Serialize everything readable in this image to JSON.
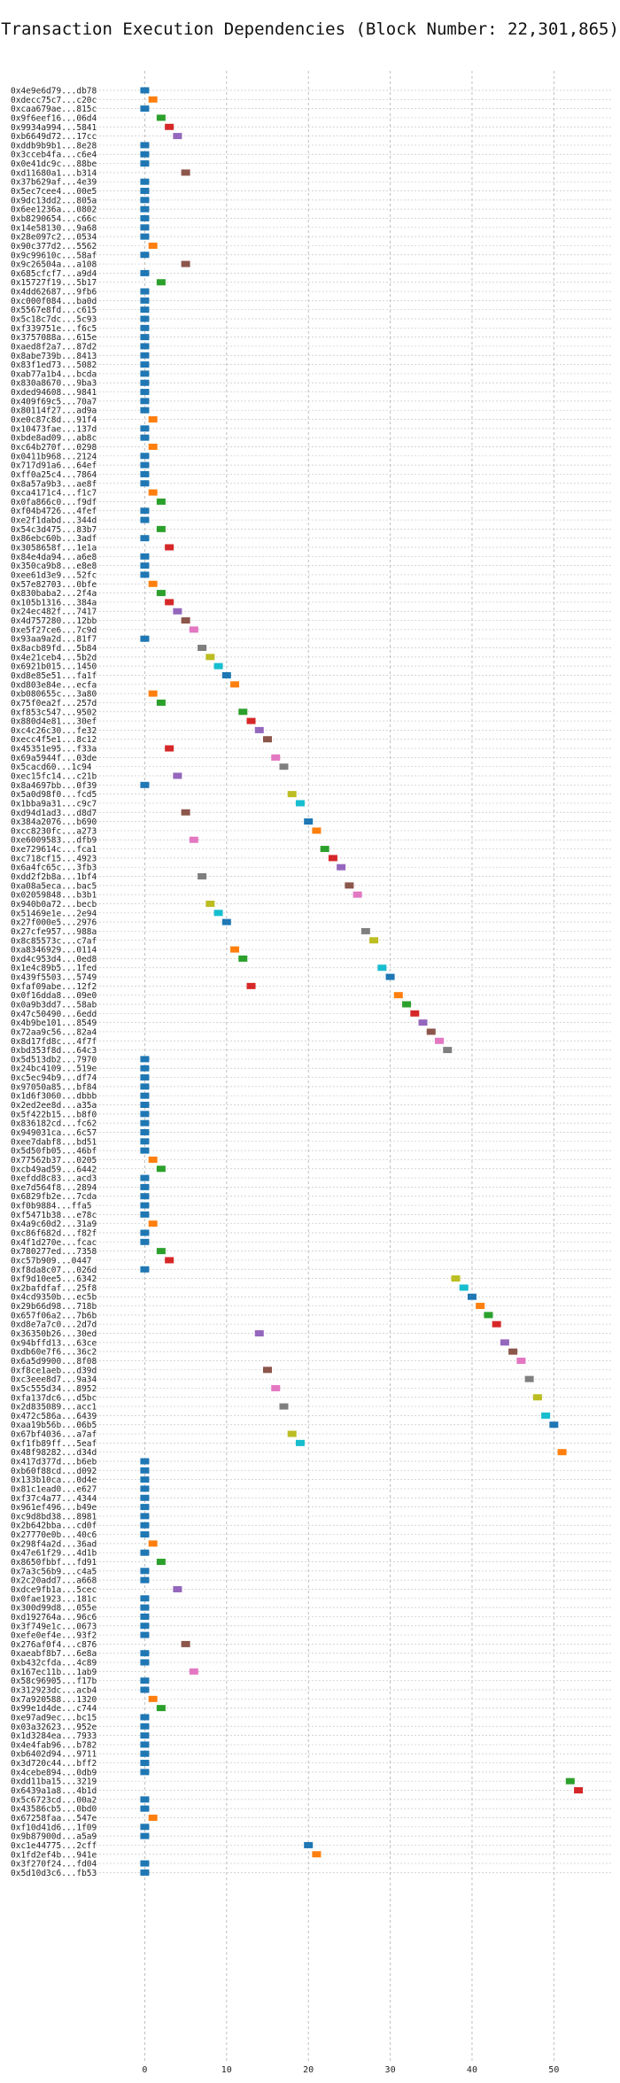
{
  "chart_data": {
    "type": "scatter",
    "title": "Transaction Execution Dependencies (Block Number: 22,301,865)",
    "xlabel": "",
    "ylabel": "",
    "xlim": [
      -6,
      57
    ],
    "xticks": [
      0,
      10,
      20,
      30,
      40,
      50
    ],
    "grid": true,
    "colors": [
      "#1f77b4",
      "#ff7f0e",
      "#2ca02c",
      "#d62728",
      "#9467bd",
      "#8c564b",
      "#e377c2",
      "#7f7f7f",
      "#bcbd22",
      "#17becf"
    ],
    "transactions": [
      {
        "label": "0x4e9e6d79...db78",
        "x": 0
      },
      {
        "label": "0xdecc75c7...c20c",
        "x": 1
      },
      {
        "label": "0xcaa679ae...815c",
        "x": 0
      },
      {
        "label": "0x9f6eef16...06d4",
        "x": 2
      },
      {
        "label": "0x9934a994...5841",
        "x": 3
      },
      {
        "label": "0xb6649d72...17cc",
        "x": 4
      },
      {
        "label": "0xddb9b9b1...8e28",
        "x": 0
      },
      {
        "label": "0x3cceb4fa...c6e4",
        "x": 0
      },
      {
        "label": "0x0e41dc9c...88be",
        "x": 0
      },
      {
        "label": "0xd11680a1...b314",
        "x": 5
      },
      {
        "label": "0x37b629af...4e39",
        "x": 0
      },
      {
        "label": "0x5ec7cee4...00e5",
        "x": 0
      },
      {
        "label": "0x9dc13dd2...805a",
        "x": 0
      },
      {
        "label": "0x6ee1236a...0802",
        "x": 0
      },
      {
        "label": "0xb8290654...c66c",
        "x": 0
      },
      {
        "label": "0x14e58130...9a68",
        "x": 0
      },
      {
        "label": "0x28e097c2...0534",
        "x": 0
      },
      {
        "label": "0x90c377d2...5562",
        "x": 1
      },
      {
        "label": "0x9c99610c...58af",
        "x": 0
      },
      {
        "label": "0x9c26504a...a108",
        "x": 5
      },
      {
        "label": "0x685cfcf7...a9d4",
        "x": 0
      },
      {
        "label": "0x15727f19...5b17",
        "x": 2
      },
      {
        "label": "0x4dd62687...9fb6",
        "x": 0
      },
      {
        "label": "0xc000f084...ba0d",
        "x": 0
      },
      {
        "label": "0x5567e8fd...c615",
        "x": 0
      },
      {
        "label": "0x5c18c7dc...5c93",
        "x": 0
      },
      {
        "label": "0xf339751e...f6c5",
        "x": 0
      },
      {
        "label": "0x3757088a...615e",
        "x": 0
      },
      {
        "label": "0xaed8f2a7...87d2",
        "x": 0
      },
      {
        "label": "0x8abe739b...8413",
        "x": 0
      },
      {
        "label": "0x83f1ed73...5082",
        "x": 0
      },
      {
        "label": "0xab77a1b4...bcda",
        "x": 0
      },
      {
        "label": "0x830a8670...9ba3",
        "x": 0
      },
      {
        "label": "0xded94608...9841",
        "x": 0
      },
      {
        "label": "0x409f69c5...70a7",
        "x": 0
      },
      {
        "label": "0x80114f27...ad9a",
        "x": 0
      },
      {
        "label": "0xe0c87c8d...91f4",
        "x": 1
      },
      {
        "label": "0x10473fae...137d",
        "x": 0
      },
      {
        "label": "0xbde8ad09...ab8c",
        "x": 0
      },
      {
        "label": "0xc64b270f...0298",
        "x": 1
      },
      {
        "label": "0x0411b968...2124",
        "x": 0
      },
      {
        "label": "0x717d91a6...64ef",
        "x": 0
      },
      {
        "label": "0xff0a25c4...7864",
        "x": 0
      },
      {
        "label": "0x8a57a9b3...ae8f",
        "x": 0
      },
      {
        "label": "0xca4171c4...f1c7",
        "x": 1
      },
      {
        "label": "0x0fa866c0...f9df",
        "x": 2
      },
      {
        "label": "0xf04b4726...4fef",
        "x": 0
      },
      {
        "label": "0xe2f1dabd...344d",
        "x": 0
      },
      {
        "label": "0x54c3d475...83b7",
        "x": 2
      },
      {
        "label": "0x86ebc60b...3adf",
        "x": 0
      },
      {
        "label": "0x3058658f...1e1a",
        "x": 3
      },
      {
        "label": "0x84e4da94...a6e8",
        "x": 0
      },
      {
        "label": "0x350ca9b8...e8e8",
        "x": 0
      },
      {
        "label": "0xee61d3e9...52fc",
        "x": 0
      },
      {
        "label": "0x57e82703...0bfe",
        "x": 1
      },
      {
        "label": "0x830baba2...2f4a",
        "x": 2
      },
      {
        "label": "0x105b1316...384a",
        "x": 3
      },
      {
        "label": "0x24ec482f...7417",
        "x": 4
      },
      {
        "label": "0x4d757280...12bb",
        "x": 5
      },
      {
        "label": "0xe5f27ce6...7c9d",
        "x": 6
      },
      {
        "label": "0x93aa9a2d...81f7",
        "x": 0
      },
      {
        "label": "0x8acb89fd...5b84",
        "x": 7
      },
      {
        "label": "0x4e21ceb4...5b2d",
        "x": 8
      },
      {
        "label": "0x6921b015...1450",
        "x": 9
      },
      {
        "label": "0xd8e85e51...fa1f",
        "x": 10
      },
      {
        "label": "0xd803e84e...ecfa",
        "x": 11
      },
      {
        "label": "0xb080655c...3a80",
        "x": 1
      },
      {
        "label": "0x75f0ea2f...257d",
        "x": 2
      },
      {
        "label": "0xf853c547...9502",
        "x": 12
      },
      {
        "label": "0x880d4e81...30ef",
        "x": 13
      },
      {
        "label": "0xc4c26c30...fe32",
        "x": 14
      },
      {
        "label": "0xecc4f5e1...8c12",
        "x": 15
      },
      {
        "label": "0x45351e95...f33a",
        "x": 3
      },
      {
        "label": "0x69a5944f...03de",
        "x": 16
      },
      {
        "label": "0x5cacd60...1c94",
        "x": 17
      },
      {
        "label": "0xec15fc14...c21b",
        "x": 4
      },
      {
        "label": "0x8a4697bb...0f39",
        "x": 0
      },
      {
        "label": "0x5a0d98f0...fcd5",
        "x": 18
      },
      {
        "label": "0x1bba9a31...c9c7",
        "x": 19
      },
      {
        "label": "0xd94d1ad3...d8d7",
        "x": 5
      },
      {
        "label": "0x384a2076...b690",
        "x": 20
      },
      {
        "label": "0xcc8230fc...a273",
        "x": 21
      },
      {
        "label": "0xe6009583...dfb9",
        "x": 6
      },
      {
        "label": "0xe729614c...fca1",
        "x": 22
      },
      {
        "label": "0xc718cf15...4923",
        "x": 23
      },
      {
        "label": "0x6a4fc65c...3fb3",
        "x": 24
      },
      {
        "label": "0xdd2f2b8a...1bf4",
        "x": 7
      },
      {
        "label": "0xa08a5eca...bac5",
        "x": 25
      },
      {
        "label": "0x02059848...b3b1",
        "x": 26
      },
      {
        "label": "0x940b0a72...becb",
        "x": 8
      },
      {
        "label": "0x51469e1e...2e94",
        "x": 9
      },
      {
        "label": "0x27f000e5...2976",
        "x": 10
      },
      {
        "label": "0x27cfe957...988a",
        "x": 27
      },
      {
        "label": "0x8c85573c...c7af",
        "x": 28
      },
      {
        "label": "0xa8346929...0114",
        "x": 11
      },
      {
        "label": "0xd4c953d4...0ed8",
        "x": 12
      },
      {
        "label": "0x1e4c89b5...1fed",
        "x": 29
      },
      {
        "label": "0x439f5503...5749",
        "x": 30
      },
      {
        "label": "0xfaf09abe...12f2",
        "x": 13
      },
      {
        "label": "0x0f16dda8...09e0",
        "x": 31
      },
      {
        "label": "0x0a9b3dd7...58ab",
        "x": 32
      },
      {
        "label": "0x47c50490...6edd",
        "x": 33
      },
      {
        "label": "0x4b9be101...8549",
        "x": 34
      },
      {
        "label": "0x72aa9c56...82a4",
        "x": 35
      },
      {
        "label": "0x8d17fd8c...4f7f",
        "x": 36
      },
      {
        "label": "0xbd353f8d...64c3",
        "x": 37
      },
      {
        "label": "0x5d513db2...7970",
        "x": 0
      },
      {
        "label": "0x24bc4109...519e",
        "x": 0
      },
      {
        "label": "0xc5ec94b9...df74",
        "x": 0
      },
      {
        "label": "0x97050a85...bf84",
        "x": 0
      },
      {
        "label": "0x1d6f3060...dbbb",
        "x": 0
      },
      {
        "label": "0x2ed2ee8d...a35a",
        "x": 0
      },
      {
        "label": "0x5f422b15...b8f0",
        "x": 0
      },
      {
        "label": "0x836182cd...fc62",
        "x": 0
      },
      {
        "label": "0x949031ca...6c57",
        "x": 0
      },
      {
        "label": "0xee7dabf8...bd51",
        "x": 0
      },
      {
        "label": "0x5d50fb05...46bf",
        "x": 0
      },
      {
        "label": "0x77562b37...0205",
        "x": 1
      },
      {
        "label": "0xcb49ad59...6442",
        "x": 2
      },
      {
        "label": "0xefdd8c83...acd3",
        "x": 0
      },
      {
        "label": "0xe7d564f8...2894",
        "x": 0
      },
      {
        "label": "0x6829fb2e...7cda",
        "x": 0
      },
      {
        "label": "0xf0b9884...ffa5",
        "x": 0
      },
      {
        "label": "0xf5471b38...e78c",
        "x": 0
      },
      {
        "label": "0x4a9c60d2...31a9",
        "x": 1
      },
      {
        "label": "0xc86f682d...f82f",
        "x": 0
      },
      {
        "label": "0x4f1d270e...fcac",
        "x": 0
      },
      {
        "label": "0x780277ed...7358",
        "x": 2
      },
      {
        "label": "0xc57b909...0447",
        "x": 3
      },
      {
        "label": "0xf8da8c07...026d",
        "x": 0
      },
      {
        "label": "0xf9d10ee5...6342",
        "x": 38
      },
      {
        "label": "0x2bafdfaf...25f8",
        "x": 39
      },
      {
        "label": "0x4cd9350b...ec5b",
        "x": 40
      },
      {
        "label": "0x29b66d98...718b",
        "x": 41
      },
      {
        "label": "0x657f06a2...7b6b",
        "x": 42
      },
      {
        "label": "0xd8e7a7c0...2d7d",
        "x": 43
      },
      {
        "label": "0x36350b26...30ed",
        "x": 14
      },
      {
        "label": "0x94bffd13...63ce",
        "x": 44
      },
      {
        "label": "0xdb60e7f6...36c2",
        "x": 45
      },
      {
        "label": "0x6a5d9900...8f08",
        "x": 46
      },
      {
        "label": "0xf8ce1aeb...d39d",
        "x": 15
      },
      {
        "label": "0xc3eee8d7...9a34",
        "x": 47
      },
      {
        "label": "0x5c555d34...8952",
        "x": 16
      },
      {
        "label": "0xfa137dc6...d5bc",
        "x": 48
      },
      {
        "label": "0x2d835089...acc1",
        "x": 17
      },
      {
        "label": "0x472c586a...6439",
        "x": 49
      },
      {
        "label": "0xaa19b56b...06b5",
        "x": 50
      },
      {
        "label": "0x67bf4036...a7af",
        "x": 18
      },
      {
        "label": "0xf1fb89ff...5eaf",
        "x": 19
      },
      {
        "label": "0x48f98282...d34d",
        "x": 51
      },
      {
        "label": "0x417d377d...b6eb",
        "x": 0
      },
      {
        "label": "0xb60f88cd...d092",
        "x": 0
      },
      {
        "label": "0x133b10ca...0d4e",
        "x": 0
      },
      {
        "label": "0x81c1ead0...e627",
        "x": 0
      },
      {
        "label": "0xf37c4a77...4344",
        "x": 0
      },
      {
        "label": "0x961ef496...b49e",
        "x": 0
      },
      {
        "label": "0xc9d8bd38...8981",
        "x": 0
      },
      {
        "label": "0x2b642bba...cd0f",
        "x": 0
      },
      {
        "label": "0x27770e0b...40c6",
        "x": 0
      },
      {
        "label": "0x298f4a2d...36ad",
        "x": 1
      },
      {
        "label": "0x47e61f29...4d1b",
        "x": 0
      },
      {
        "label": "0x8650fbbf...fd91",
        "x": 2
      },
      {
        "label": "0x7a3c56b9...c4a5",
        "x": 0
      },
      {
        "label": "0x2c20add7...a668",
        "x": 0
      },
      {
        "label": "0xdce9fb1a...5cec",
        "x": 4
      },
      {
        "label": "0x0fae1923...181c",
        "x": 0
      },
      {
        "label": "0x300d99d8...055e",
        "x": 0
      },
      {
        "label": "0xd192764a...96c6",
        "x": 0
      },
      {
        "label": "0x3f749e1c...0673",
        "x": 0
      },
      {
        "label": "0xefe0ef4e...93f2",
        "x": 0
      },
      {
        "label": "0x276af0f4...c876",
        "x": 5
      },
      {
        "label": "0xaeabf8b7...6e8a",
        "x": 0
      },
      {
        "label": "0xb432cfda...4c89",
        "x": 0
      },
      {
        "label": "0x167ec11b...1ab9",
        "x": 6
      },
      {
        "label": "0x58c96905...f17b",
        "x": 0
      },
      {
        "label": "0x312923dc...acb4",
        "x": 0
      },
      {
        "label": "0x7a920588...1320",
        "x": 1
      },
      {
        "label": "0x99e1d4de...c744",
        "x": 2
      },
      {
        "label": "0xe97ad9ec...bc15",
        "x": 0
      },
      {
        "label": "0x03a32623...952e",
        "x": 0
      },
      {
        "label": "0x1d3284ea...7933",
        "x": 0
      },
      {
        "label": "0x4e4fab96...b782",
        "x": 0
      },
      {
        "label": "0xb6402d94...9711",
        "x": 0
      },
      {
        "label": "0x3d720c44...bff2",
        "x": 0
      },
      {
        "label": "0x4cebe894...0db9",
        "x": 0
      },
      {
        "label": "0xdd11ba15...3219",
        "x": 52
      },
      {
        "label": "0x6439a1a8...4b1d",
        "x": 53
      },
      {
        "label": "0x5c6723cd...00a2",
        "x": 0
      },
      {
        "label": "0x43586cb5...0bd0",
        "x": 0
      },
      {
        "label": "0x67258faa...547e",
        "x": 1
      },
      {
        "label": "0xf10d41d6...1f09",
        "x": 0
      },
      {
        "label": "0x9b87900d...a5a9",
        "x": 0
      },
      {
        "label": "0xc1e44775...2cff",
        "x": 20
      },
      {
        "label": "0x1fd2ef4b...941e",
        "x": 21
      },
      {
        "label": "0x3f270f24...fd04",
        "x": 0
      },
      {
        "label": "0x5d10d3c6...fb53",
        "x": 0
      }
    ]
  }
}
